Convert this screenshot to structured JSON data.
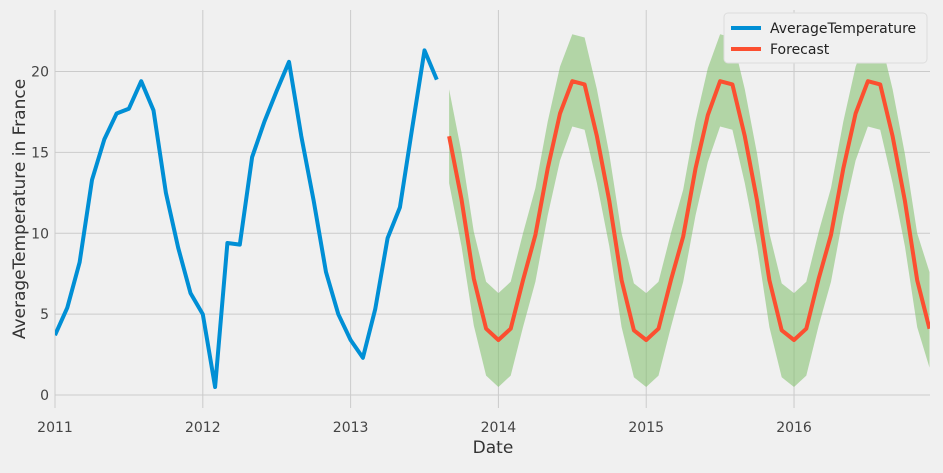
{
  "chart_data": {
    "type": "line",
    "title": "",
    "xlabel": "Date",
    "ylabel": "AverageTemperature in France",
    "xlim": [
      2011.0,
      2016.92
    ],
    "ylim": [
      -0.8,
      23.8
    ],
    "x_ticks": [
      {
        "value": 2011,
        "label": "2011"
      },
      {
        "value": 2012,
        "label": "2012"
      },
      {
        "value": 2013,
        "label": "2013"
      },
      {
        "value": 2014,
        "label": "2014"
      },
      {
        "value": 2015,
        "label": "2015"
      },
      {
        "value": 2016,
        "label": "2016"
      }
    ],
    "y_ticks": [
      {
        "value": 0,
        "label": "0"
      },
      {
        "value": 5,
        "label": "5"
      },
      {
        "value": 10,
        "label": "10"
      },
      {
        "value": 15,
        "label": "15"
      },
      {
        "value": 20,
        "label": "20"
      }
    ],
    "grid": true,
    "legend_position": "top-right",
    "series": [
      {
        "name": "AverageTemperature",
        "color": "#008fd5",
        "x": [
          "2011-01",
          "2011-02",
          "2011-03",
          "2011-04",
          "2011-05",
          "2011-06",
          "2011-07",
          "2011-08",
          "2011-09",
          "2011-10",
          "2011-11",
          "2011-12",
          "2012-01",
          "2012-02",
          "2012-03",
          "2012-04",
          "2012-05",
          "2012-06",
          "2012-07",
          "2012-08",
          "2012-09",
          "2012-10",
          "2012-11",
          "2012-12",
          "2013-01",
          "2013-02",
          "2013-03",
          "2013-04",
          "2013-05",
          "2013-06",
          "2013-07",
          "2013-08"
        ],
        "values": [
          3.7,
          5.4,
          8.2,
          13.3,
          15.8,
          17.4,
          17.7,
          19.4,
          17.6,
          12.5,
          9.1,
          6.3,
          5.0,
          0.5,
          9.4,
          9.3,
          14.7,
          16.9,
          18.8,
          20.6,
          16.0,
          12.0,
          7.6,
          5.0,
          3.4,
          2.3,
          5.3,
          9.7,
          11.6,
          16.5,
          21.3,
          19.5
        ]
      },
      {
        "name": "Forecast",
        "color": "#fc4f30",
        "x": [
          "2013-09",
          "2013-10",
          "2013-11",
          "2013-12",
          "2014-01",
          "2014-02",
          "2014-03",
          "2014-04",
          "2014-05",
          "2014-06",
          "2014-07",
          "2014-08",
          "2014-09",
          "2014-10",
          "2014-11",
          "2014-12",
          "2015-01",
          "2015-02",
          "2015-03",
          "2015-04",
          "2015-05",
          "2015-06",
          "2015-07",
          "2015-08",
          "2015-09",
          "2015-10",
          "2015-11",
          "2015-12",
          "2016-01",
          "2016-02",
          "2016-03",
          "2016-04",
          "2016-05",
          "2016-06",
          "2016-07",
          "2016-08",
          "2016-09",
          "2016-10",
          "2016-11",
          "2016-12"
        ],
        "values": [
          16.0,
          12.1,
          7.2,
          4.1,
          3.4,
          4.1,
          7.1,
          9.9,
          14.0,
          17.4,
          19.4,
          19.2,
          16.0,
          12.0,
          7.1,
          4.0,
          3.4,
          4.1,
          7.1,
          9.8,
          14.0,
          17.3,
          19.4,
          19.2,
          16.0,
          12.0,
          7.1,
          4.0,
          3.4,
          4.1,
          7.2,
          9.9,
          14.0,
          17.4,
          19.4,
          19.2,
          16.0,
          12.0,
          7.1,
          4.1
        ],
        "lower": [
          13.1,
          9.2,
          4.3,
          1.2,
          0.5,
          1.2,
          4.2,
          7.0,
          11.1,
          14.5,
          16.6,
          16.4,
          13.1,
          9.2,
          4.2,
          1.1,
          0.5,
          1.2,
          4.2,
          7.0,
          11.1,
          14.4,
          16.6,
          16.4,
          13.1,
          9.2,
          4.2,
          1.1,
          0.5,
          1.2,
          4.3,
          7.0,
          11.1,
          14.5,
          16.6,
          16.4,
          13.1,
          9.2,
          4.2,
          1.7
        ],
        "upper": [
          18.9,
          15.0,
          10.1,
          7.0,
          6.3,
          7.0,
          10.0,
          12.8,
          16.9,
          20.3,
          22.3,
          22.1,
          18.9,
          14.9,
          10.0,
          6.9,
          6.3,
          7.0,
          10.0,
          12.7,
          16.9,
          20.2,
          22.3,
          22.1,
          18.9,
          14.9,
          10.0,
          6.9,
          6.3,
          7.0,
          10.1,
          12.8,
          16.9,
          20.3,
          22.3,
          22.1,
          18.9,
          14.9,
          10.0,
          7.6
        ]
      }
    ],
    "confidence_band_color": "#7fbf6a"
  }
}
